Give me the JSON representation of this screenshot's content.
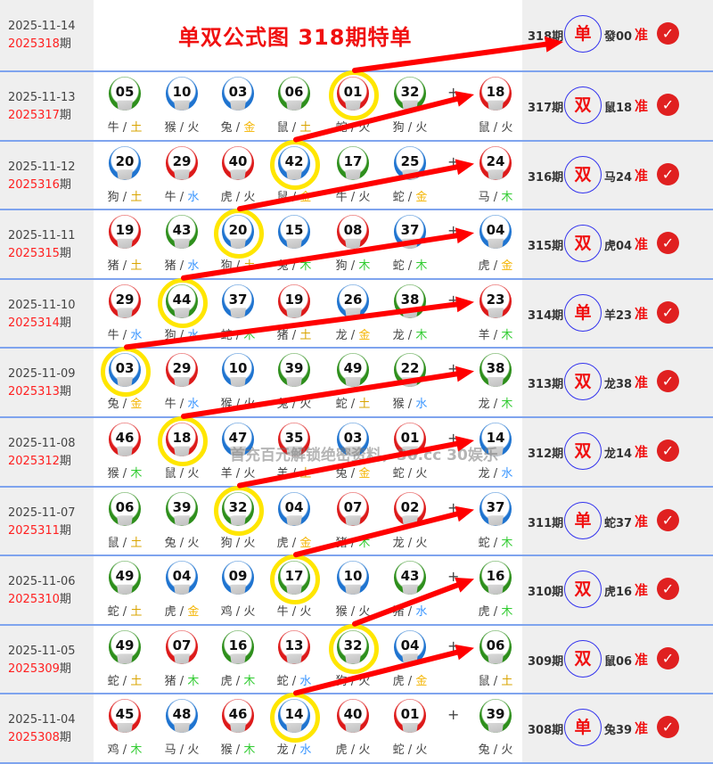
{
  "header": {
    "date": "2025-11-14",
    "issue_red": "2025318",
    "issue_suffix": "期",
    "title": "单双公式图 318期特单",
    "result": {
      "period": "318期",
      "pick": "单",
      "zodiac": "發00",
      "status": "准",
      "check_icon": "check-circle-icon"
    }
  },
  "watermark": "首充百元解锁绝密资料，30.cc 30娱乐",
  "plus_sign": "+",
  "ball_colors": {
    "red": "#dd1a1a",
    "blue": "#1f74d0",
    "green": "#2e8f1c"
  },
  "element_colors": {
    "土": "#d9a400",
    "金": "#f4b400",
    "水": "#3a96ff",
    "木": "#33cc33",
    "火": "#444444"
  },
  "highlight_color": "#ffe600",
  "arrow_color": "#ff0000",
  "rows": [
    {
      "date": "2025-11-13",
      "issue_red": "2025317",
      "issue_suffix": "期",
      "hl": 4,
      "balls": [
        {
          "n": "05",
          "c": "green",
          "z": "牛",
          "e": "土"
        },
        {
          "n": "10",
          "c": "blue",
          "z": "猴",
          "e": "火"
        },
        {
          "n": "03",
          "c": "blue",
          "z": "兔",
          "e": "金"
        },
        {
          "n": "06",
          "c": "green",
          "z": "鼠",
          "e": "土"
        },
        {
          "n": "01",
          "c": "red",
          "z": "蛇",
          "e": "火"
        },
        {
          "n": "32",
          "c": "green",
          "z": "狗",
          "e": "火"
        },
        {
          "n": "18",
          "c": "red",
          "z": "鼠",
          "e": "火"
        }
      ],
      "result": {
        "period": "317期",
        "pick": "双",
        "zodiac": "鼠18",
        "status": "准"
      }
    },
    {
      "date": "2025-11-12",
      "issue_red": "2025316",
      "issue_suffix": "期",
      "hl": 3,
      "balls": [
        {
          "n": "20",
          "c": "blue",
          "z": "狗",
          "e": "土"
        },
        {
          "n": "29",
          "c": "red",
          "z": "牛",
          "e": "水"
        },
        {
          "n": "40",
          "c": "red",
          "z": "虎",
          "e": "火"
        },
        {
          "n": "42",
          "c": "blue",
          "z": "鼠",
          "e": "金"
        },
        {
          "n": "17",
          "c": "green",
          "z": "牛",
          "e": "火"
        },
        {
          "n": "25",
          "c": "blue",
          "z": "蛇",
          "e": "金"
        },
        {
          "n": "24",
          "c": "red",
          "z": "马",
          "e": "木"
        }
      ],
      "result": {
        "period": "316期",
        "pick": "双",
        "zodiac": "马24",
        "status": "准"
      }
    },
    {
      "date": "2025-11-11",
      "issue_red": "2025315",
      "issue_suffix": "期",
      "hl": 2,
      "balls": [
        {
          "n": "19",
          "c": "red",
          "z": "猪",
          "e": "土"
        },
        {
          "n": "43",
          "c": "green",
          "z": "猪",
          "e": "水"
        },
        {
          "n": "20",
          "c": "blue",
          "z": "狗",
          "e": "土"
        },
        {
          "n": "15",
          "c": "blue",
          "z": "兔",
          "e": "木"
        },
        {
          "n": "08",
          "c": "red",
          "z": "狗",
          "e": "木"
        },
        {
          "n": "37",
          "c": "blue",
          "z": "蛇",
          "e": "木"
        },
        {
          "n": "04",
          "c": "blue",
          "z": "虎",
          "e": "金"
        }
      ],
      "result": {
        "period": "315期",
        "pick": "双",
        "zodiac": "虎04",
        "status": "准"
      }
    },
    {
      "date": "2025-11-10",
      "issue_red": "2025314",
      "issue_suffix": "期",
      "hl": 1,
      "balls": [
        {
          "n": "29",
          "c": "red",
          "z": "牛",
          "e": "水"
        },
        {
          "n": "44",
          "c": "green",
          "z": "狗",
          "e": "水"
        },
        {
          "n": "37",
          "c": "blue",
          "z": "蛇",
          "e": "木"
        },
        {
          "n": "19",
          "c": "red",
          "z": "猪",
          "e": "土"
        },
        {
          "n": "26",
          "c": "blue",
          "z": "龙",
          "e": "金"
        },
        {
          "n": "38",
          "c": "green",
          "z": "龙",
          "e": "木"
        },
        {
          "n": "23",
          "c": "red",
          "z": "羊",
          "e": "木"
        }
      ],
      "result": {
        "period": "314期",
        "pick": "单",
        "zodiac": "羊23",
        "status": "准"
      }
    },
    {
      "date": "2025-11-09",
      "issue_red": "2025313",
      "issue_suffix": "期",
      "hl": 0,
      "balls": [
        {
          "n": "03",
          "c": "blue",
          "z": "兔",
          "e": "金"
        },
        {
          "n": "29",
          "c": "red",
          "z": "牛",
          "e": "水"
        },
        {
          "n": "10",
          "c": "blue",
          "z": "猴",
          "e": "火"
        },
        {
          "n": "39",
          "c": "green",
          "z": "兔",
          "e": "火"
        },
        {
          "n": "49",
          "c": "green",
          "z": "蛇",
          "e": "土"
        },
        {
          "n": "22",
          "c": "green",
          "z": "猴",
          "e": "水"
        },
        {
          "n": "38",
          "c": "green",
          "z": "龙",
          "e": "木"
        }
      ],
      "result": {
        "period": "313期",
        "pick": "双",
        "zodiac": "龙38",
        "status": "准"
      }
    },
    {
      "date": "2025-11-08",
      "issue_red": "2025312",
      "issue_suffix": "期",
      "hl": 1,
      "balls": [
        {
          "n": "46",
          "c": "red",
          "z": "猴",
          "e": "木"
        },
        {
          "n": "18",
          "c": "red",
          "z": "鼠",
          "e": "火"
        },
        {
          "n": "47",
          "c": "blue",
          "z": "羊",
          "e": "火"
        },
        {
          "n": "35",
          "c": "red",
          "z": "羊",
          "e": "土"
        },
        {
          "n": "03",
          "c": "blue",
          "z": "兔",
          "e": "金"
        },
        {
          "n": "01",
          "c": "red",
          "z": "蛇",
          "e": "火"
        },
        {
          "n": "14",
          "c": "blue",
          "z": "龙",
          "e": "水"
        }
      ],
      "result": {
        "period": "312期",
        "pick": "双",
        "zodiac": "龙14",
        "status": "准"
      }
    },
    {
      "date": "2025-11-07",
      "issue_red": "2025311",
      "issue_suffix": "期",
      "hl": 2,
      "balls": [
        {
          "n": "06",
          "c": "green",
          "z": "鼠",
          "e": "土"
        },
        {
          "n": "39",
          "c": "green",
          "z": "兔",
          "e": "火"
        },
        {
          "n": "32",
          "c": "green",
          "z": "狗",
          "e": "火"
        },
        {
          "n": "04",
          "c": "blue",
          "z": "虎",
          "e": "金"
        },
        {
          "n": "07",
          "c": "red",
          "z": "猪",
          "e": "木"
        },
        {
          "n": "02",
          "c": "red",
          "z": "龙",
          "e": "火"
        },
        {
          "n": "37",
          "c": "blue",
          "z": "蛇",
          "e": "木"
        }
      ],
      "result": {
        "period": "311期",
        "pick": "单",
        "zodiac": "蛇37",
        "status": "准"
      }
    },
    {
      "date": "2025-11-06",
      "issue_red": "2025310",
      "issue_suffix": "期",
      "hl": 3,
      "balls": [
        {
          "n": "49",
          "c": "green",
          "z": "蛇",
          "e": "土"
        },
        {
          "n": "04",
          "c": "blue",
          "z": "虎",
          "e": "金"
        },
        {
          "n": "09",
          "c": "blue",
          "z": "鸡",
          "e": "火"
        },
        {
          "n": "17",
          "c": "green",
          "z": "牛",
          "e": "火"
        },
        {
          "n": "10",
          "c": "blue",
          "z": "猴",
          "e": "火"
        },
        {
          "n": "43",
          "c": "green",
          "z": "猪",
          "e": "水"
        },
        {
          "n": "16",
          "c": "green",
          "z": "虎",
          "e": "木"
        }
      ],
      "result": {
        "period": "310期",
        "pick": "双",
        "zodiac": "虎16",
        "status": "准"
      }
    },
    {
      "date": "2025-11-05",
      "issue_red": "2025309",
      "issue_suffix": "期",
      "hl": 4,
      "balls": [
        {
          "n": "49",
          "c": "green",
          "z": "蛇",
          "e": "土"
        },
        {
          "n": "07",
          "c": "red",
          "z": "猪",
          "e": "木"
        },
        {
          "n": "16",
          "c": "green",
          "z": "虎",
          "e": "木"
        },
        {
          "n": "13",
          "c": "red",
          "z": "蛇",
          "e": "水"
        },
        {
          "n": "32",
          "c": "green",
          "z": "狗",
          "e": "火"
        },
        {
          "n": "04",
          "c": "blue",
          "z": "虎",
          "e": "金"
        },
        {
          "n": "06",
          "c": "green",
          "z": "鼠",
          "e": "土"
        }
      ],
      "result": {
        "period": "309期",
        "pick": "双",
        "zodiac": "鼠06",
        "status": "准"
      }
    },
    {
      "date": "2025-11-04",
      "issue_red": "2025308",
      "issue_suffix": "期",
      "hl": 3,
      "balls": [
        {
          "n": "45",
          "c": "red",
          "z": "鸡",
          "e": "木"
        },
        {
          "n": "48",
          "c": "blue",
          "z": "马",
          "e": "火"
        },
        {
          "n": "46",
          "c": "red",
          "z": "猴",
          "e": "木"
        },
        {
          "n": "14",
          "c": "blue",
          "z": "龙",
          "e": "水"
        },
        {
          "n": "40",
          "c": "red",
          "z": "虎",
          "e": "火"
        },
        {
          "n": "01",
          "c": "red",
          "z": "蛇",
          "e": "火"
        },
        {
          "n": "39",
          "c": "green",
          "z": "兔",
          "e": "火"
        }
      ],
      "result": {
        "period": "308期",
        "pick": "单",
        "zodiac": "兔39",
        "status": "准"
      }
    }
  ]
}
